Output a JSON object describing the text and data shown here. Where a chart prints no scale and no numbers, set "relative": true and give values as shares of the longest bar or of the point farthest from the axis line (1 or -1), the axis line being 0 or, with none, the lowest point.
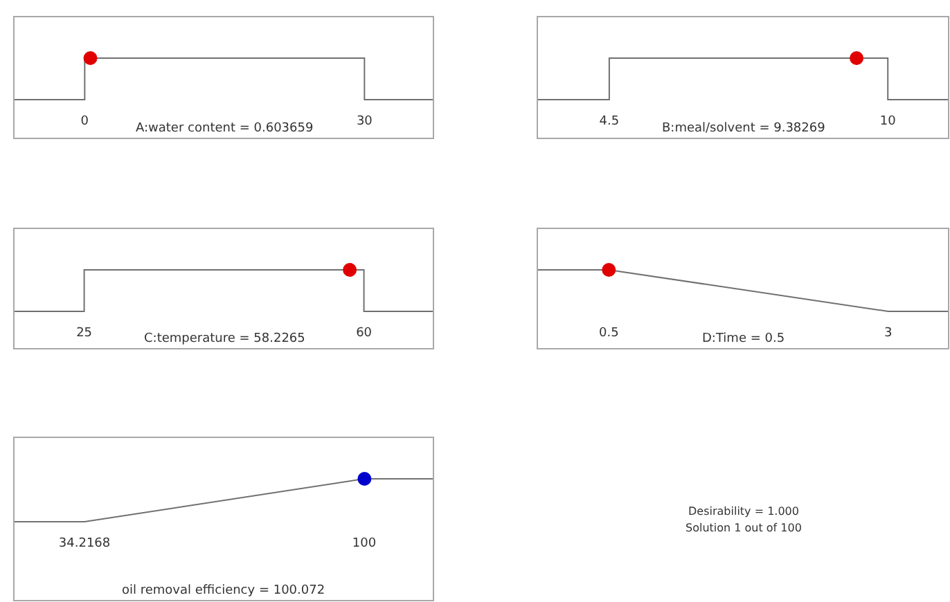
{
  "chart_data": [
    {
      "type": "line",
      "relative": true,
      "xlabel": "A:water content = 0.603659",
      "xlim": [
        -7.6,
        37.4
      ],
      "xticks": [
        0,
        30
      ],
      "series": [
        {
          "type": "line",
          "color": "#707070",
          "x": [
            -7.6,
            0,
            0,
            30,
            30,
            37.4
          ],
          "values": [
            0,
            0,
            1,
            1,
            0,
            0
          ],
          "marker": "none"
        },
        {
          "type": "scatter",
          "color": "#e00000",
          "x": [
            0.603659
          ],
          "values": [
            1
          ],
          "marker": "circle"
        }
      ]
    },
    {
      "type": "line",
      "relative": true,
      "xlabel": "B:meal/solvent = 9.38269",
      "xlim": [
        3.08,
        11.2
      ],
      "xticks": [
        4.5,
        10
      ],
      "series": [
        {
          "type": "line",
          "color": "#707070",
          "x": [
            3.08,
            4.5,
            4.5,
            10,
            10,
            11.2
          ],
          "values": [
            0,
            0,
            1,
            1,
            0,
            0
          ],
          "marker": "none"
        },
        {
          "type": "scatter",
          "color": "#e00000",
          "x": [
            9.38269
          ],
          "values": [
            1
          ],
          "marker": "circle"
        }
      ]
    },
    {
      "type": "line",
      "relative": true,
      "xlabel": "C:temperature = 58.2265",
      "xlim": [
        16.2,
        68.7
      ],
      "xticks": [
        25,
        60
      ],
      "series": [
        {
          "type": "line",
          "color": "#707070",
          "x": [
            16.2,
            25,
            25,
            60,
            60,
            68.7
          ],
          "values": [
            0,
            0,
            1,
            1,
            0,
            0
          ],
          "marker": "none"
        },
        {
          "type": "scatter",
          "color": "#e00000",
          "x": [
            58.2265
          ],
          "values": [
            1
          ],
          "marker": "circle"
        }
      ]
    },
    {
      "type": "line",
      "relative": true,
      "xlabel": "D:Time = 0.5",
      "xlim": [
        -0.14,
        3.54
      ],
      "xticks": [
        0.5,
        3
      ],
      "series": [
        {
          "type": "line",
          "color": "#707070",
          "x": [
            -0.14,
            0.5,
            3,
            3.54
          ],
          "values": [
            1,
            1,
            0,
            0
          ],
          "marker": "none"
        },
        {
          "type": "scatter",
          "color": "#e00000",
          "x": [
            0.5
          ],
          "values": [
            1
          ],
          "marker": "circle"
        }
      ]
    },
    {
      "type": "line",
      "relative": true,
      "xlabel": "oil removal efficiency = 100.072",
      "xlim": [
        17.6,
        116.3
      ],
      "xticks": [
        34.2168,
        100
      ],
      "series": [
        {
          "type": "line",
          "color": "#707070",
          "x": [
            17.6,
            34.2168,
            100,
            116.3
          ],
          "values": [
            0,
            0,
            1,
            1
          ],
          "marker": "none"
        },
        {
          "type": "scatter",
          "color": "#0000cc",
          "x": [
            100.072
          ],
          "values": [
            1
          ],
          "marker": "circle"
        }
      ]
    },
    {
      "type": "other",
      "annotations": [
        "Desirability = 1.000",
        "Solution 1 out of 100"
      ]
    }
  ]
}
